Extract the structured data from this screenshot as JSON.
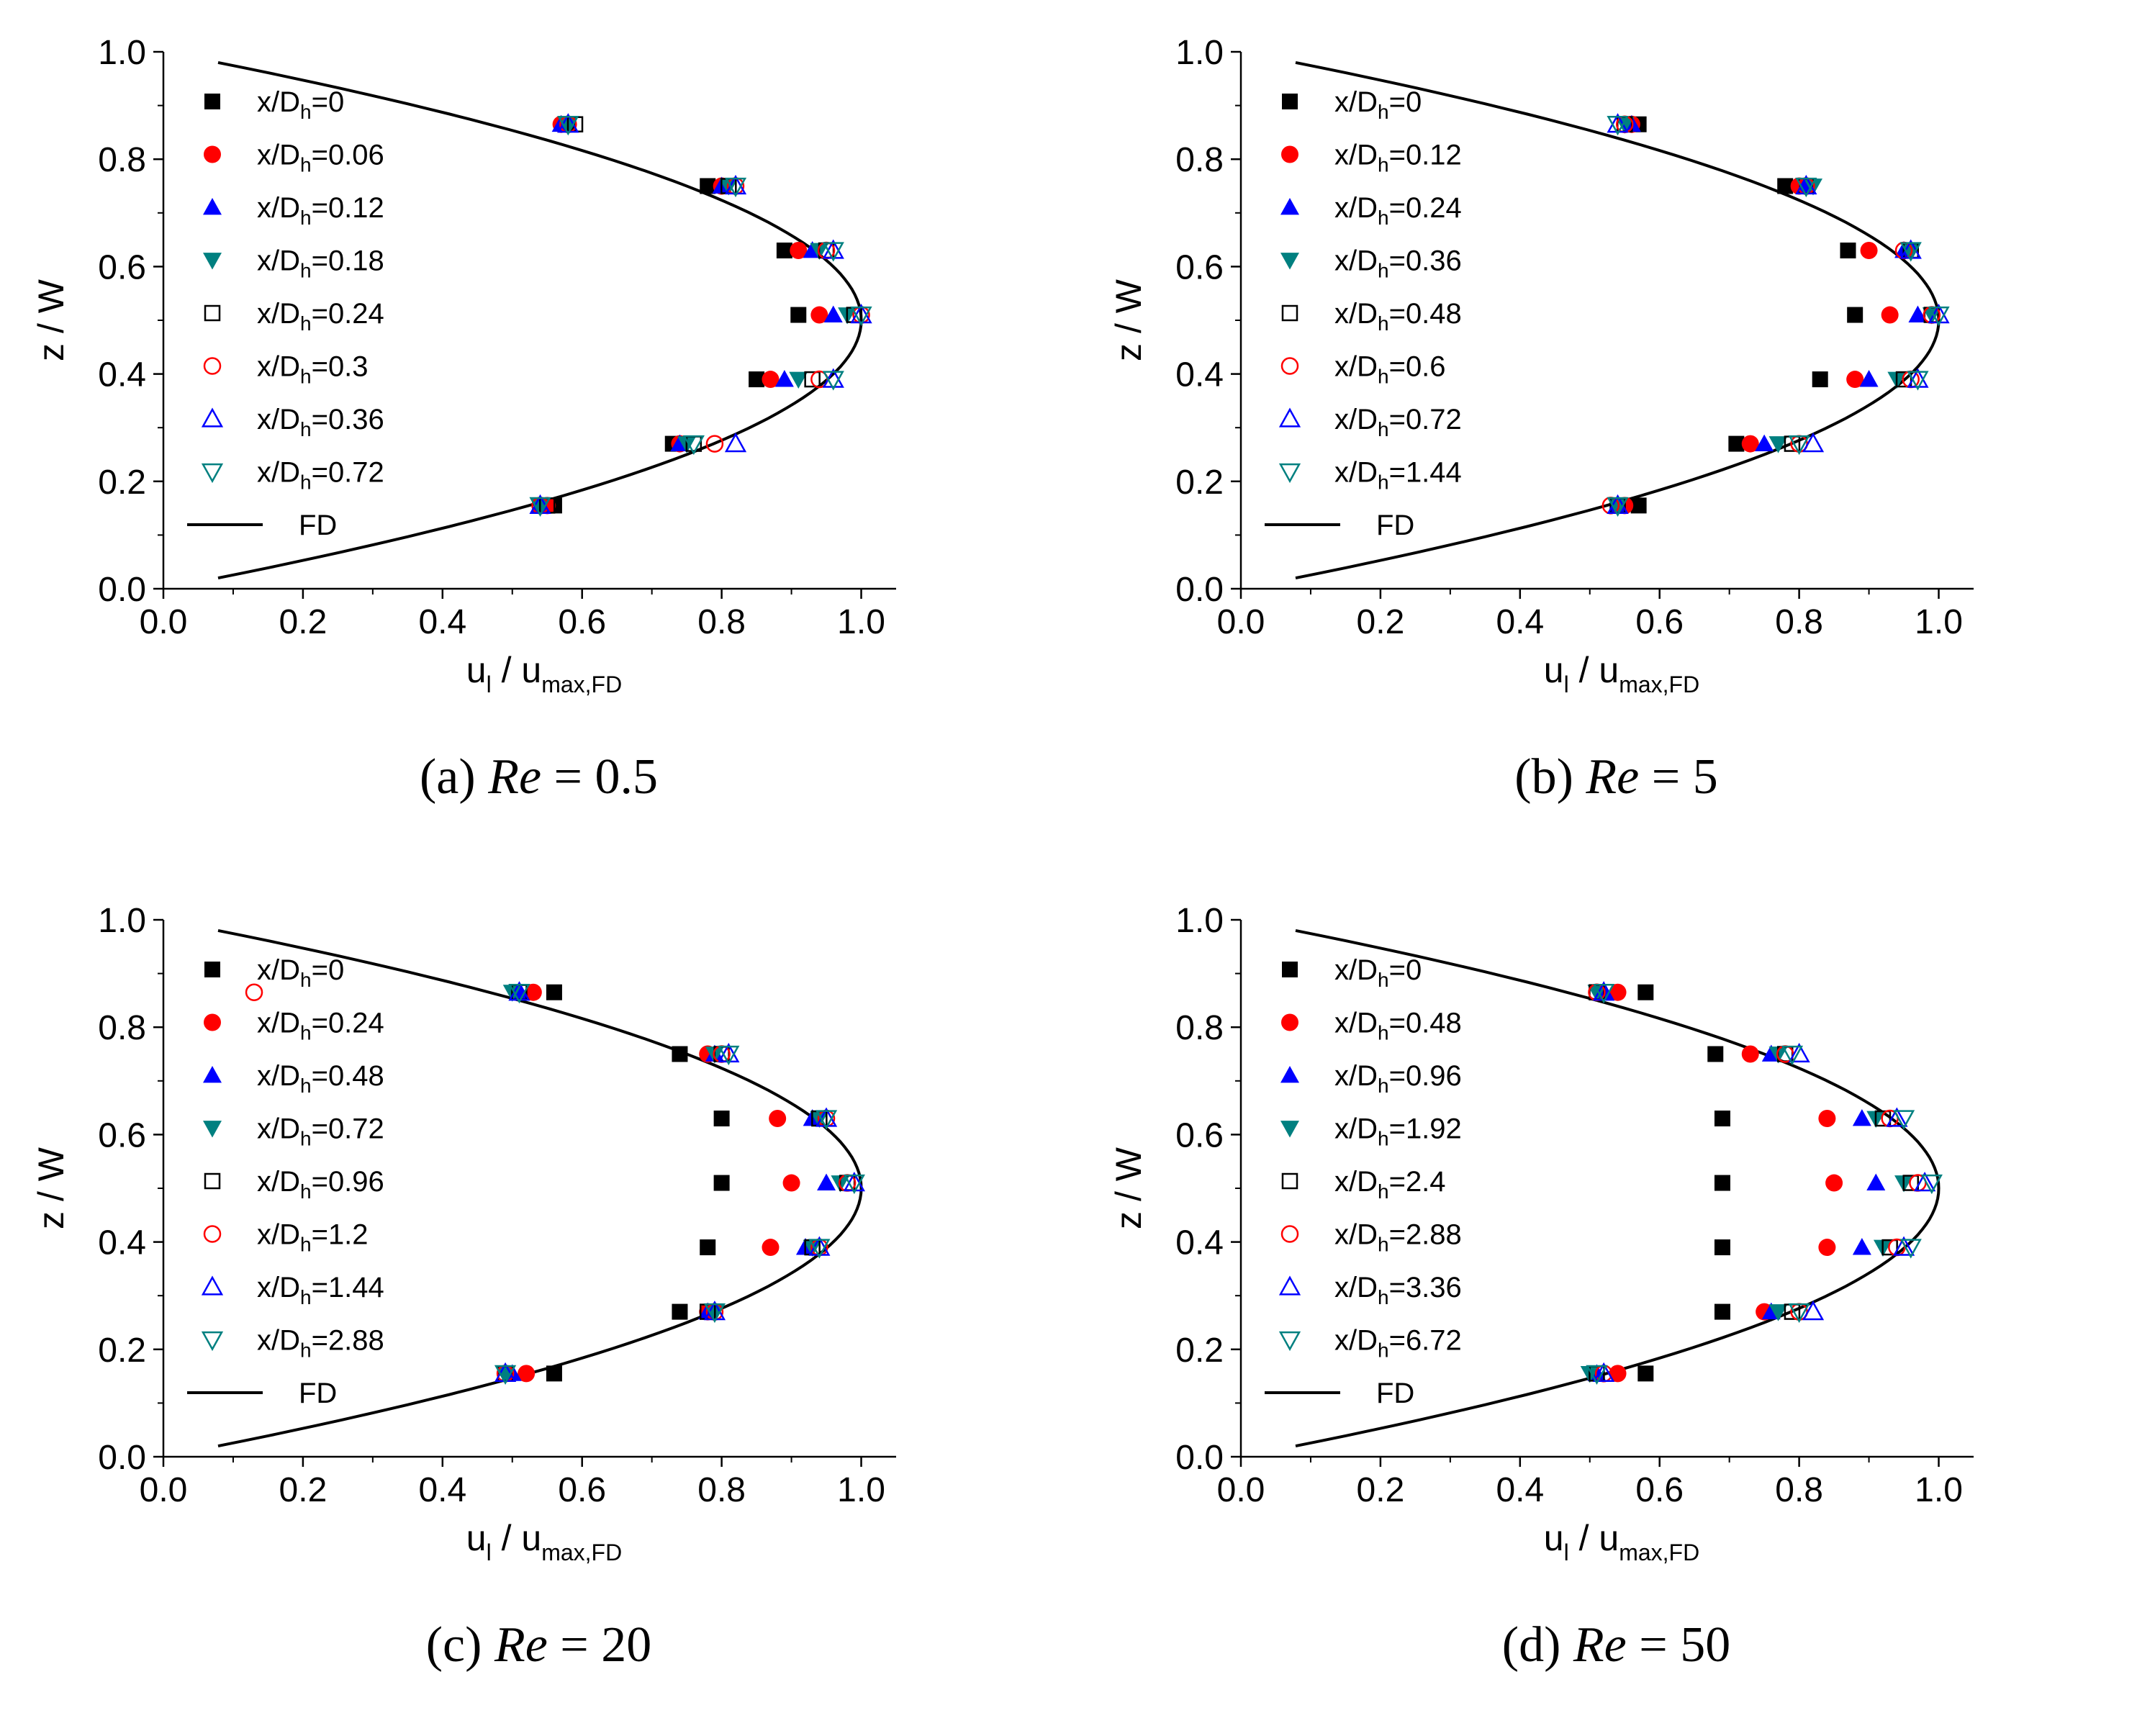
{
  "chart_data": [
    {
      "type": "scatter",
      "caption": {
        "prefix": "(a) ",
        "re_symbol": "Re",
        "rest": " = 0.5"
      },
      "xlabel": {
        "main": "u",
        "sub1": "l",
        "mid": " / u",
        "sub2": "max,FD"
      },
      "ylabel": "z / W",
      "xlim": [
        0,
        1.05
      ],
      "ylim": [
        0,
        1.0
      ],
      "xticks": [
        "0.0",
        "0.2",
        "0.4",
        "0.6",
        "0.8",
        "1.0"
      ],
      "yticks": [
        "0.0",
        "0.2",
        "0.4",
        "0.6",
        "0.8",
        "1.0"
      ],
      "legend_position": "top-left",
      "z_levels": [
        0.155,
        0.27,
        0.39,
        0.51,
        0.63,
        0.75,
        0.865
      ],
      "series": [
        {
          "name": "0",
          "marker": "square-filled",
          "color": "#000000",
          "values": [
            0.56,
            0.73,
            0.85,
            0.91,
            0.89,
            0.78,
            0.58
          ]
        },
        {
          "name": "0.06",
          "marker": "circle-filled",
          "color": "#ff0000",
          "values": [
            0.55,
            0.74,
            0.87,
            0.94,
            0.91,
            0.8,
            0.57
          ]
        },
        {
          "name": "0.12",
          "marker": "triangle-up-filled",
          "color": "#0000ff",
          "values": [
            0.54,
            0.74,
            0.89,
            0.96,
            0.93,
            0.8,
            0.57
          ]
        },
        {
          "name": "0.18",
          "marker": "triangle-down-filled",
          "color": "#008080",
          "values": [
            0.54,
            0.75,
            0.91,
            0.98,
            0.94,
            0.81,
            0.58
          ]
        },
        {
          "name": "0.24",
          "marker": "square-open",
          "color": "#000000",
          "values": [
            0.55,
            0.76,
            0.93,
            0.99,
            0.95,
            0.81,
            0.59
          ]
        },
        {
          "name": "0.3",
          "marker": "circle-open",
          "color": "#ff0000",
          "values": [
            0.54,
            0.79,
            0.94,
            1.0,
            0.95,
            0.82,
            0.58
          ]
        },
        {
          "name": "0.36",
          "marker": "triangle-up-open",
          "color": "#0000ff",
          "values": [
            0.54,
            0.82,
            0.96,
            1.0,
            0.96,
            0.82,
            0.58
          ]
        },
        {
          "name": "0.72",
          "marker": "triangle-down-open",
          "color": "#008080",
          "values": [
            0.54,
            0.76,
            0.96,
            1.0,
            0.96,
            0.82,
            0.58
          ]
        }
      ],
      "fd_curve": {
        "name": "FD"
      }
    },
    {
      "type": "scatter",
      "caption": {
        "prefix": "(b) ",
        "re_symbol": "Re",
        "rest": " = 5"
      },
      "xlabel": {
        "main": "u",
        "sub1": "l",
        "mid": " / u",
        "sub2": "max,FD"
      },
      "ylabel": "z / W",
      "xlim": [
        0,
        1.05
      ],
      "ylim": [
        0,
        1.0
      ],
      "xticks": [
        "0.0",
        "0.2",
        "0.4",
        "0.6",
        "0.8",
        "1.0"
      ],
      "yticks": [
        "0.0",
        "0.2",
        "0.4",
        "0.6",
        "0.8",
        "1.0"
      ],
      "legend_position": "top-left",
      "z_levels": [
        0.155,
        0.27,
        0.39,
        0.51,
        0.63,
        0.75,
        0.865
      ],
      "series": [
        {
          "name": "0",
          "marker": "square-filled",
          "color": "#000000",
          "values": [
            0.57,
            0.71,
            0.83,
            0.88,
            0.87,
            0.78,
            0.57
          ]
        },
        {
          "name": "0.12",
          "marker": "circle-filled",
          "color": "#ff0000",
          "values": [
            0.55,
            0.73,
            0.88,
            0.93,
            0.9,
            0.8,
            0.56
          ]
        },
        {
          "name": "0.24",
          "marker": "triangle-up-filled",
          "color": "#0000ff",
          "values": [
            0.54,
            0.75,
            0.9,
            0.97,
            0.95,
            0.81,
            0.56
          ]
        },
        {
          "name": "0.36",
          "marker": "triangle-down-filled",
          "color": "#008080",
          "values": [
            0.54,
            0.77,
            0.94,
            0.99,
            0.96,
            0.82,
            0.55
          ]
        },
        {
          "name": "0.48",
          "marker": "square-open",
          "color": "#000000",
          "values": [
            0.54,
            0.79,
            0.95,
            0.99,
            0.96,
            0.81,
            0.55
          ]
        },
        {
          "name": "0.6",
          "marker": "circle-open",
          "color": "#ff0000",
          "values": [
            0.53,
            0.8,
            0.96,
            0.99,
            0.95,
            0.81,
            0.55
          ]
        },
        {
          "name": "0.72",
          "marker": "triangle-up-open",
          "color": "#0000ff",
          "values": [
            0.54,
            0.82,
            0.97,
            1.0,
            0.96,
            0.81,
            0.54
          ]
        },
        {
          "name": "1.44",
          "marker": "triangle-down-open",
          "color": "#008080",
          "values": [
            0.54,
            0.8,
            0.97,
            1.0,
            0.96,
            0.81,
            0.54
          ]
        }
      ],
      "fd_curve": {
        "name": "FD"
      }
    },
    {
      "type": "scatter",
      "caption": {
        "prefix": "(c) ",
        "re_symbol": "Re",
        "rest": " = 20"
      },
      "xlabel": {
        "main": "u",
        "sub1": "l",
        "mid": " / u",
        "sub2": "max,FD"
      },
      "ylabel": "z / W",
      "xlim": [
        0,
        1.05
      ],
      "ylim": [
        0,
        1.0
      ],
      "xticks": [
        "0.0",
        "0.2",
        "0.4",
        "0.6",
        "0.8",
        "1.0"
      ],
      "yticks": [
        "0.0",
        "0.2",
        "0.4",
        "0.6",
        "0.8",
        "1.0"
      ],
      "legend_position": "top-left",
      "z_levels": [
        0.155,
        0.27,
        0.39,
        0.51,
        0.63,
        0.75,
        0.865
      ],
      "series": [
        {
          "name": "0",
          "marker": "square-filled",
          "color": "#000000",
          "values": [
            0.56,
            0.74,
            0.78,
            0.8,
            0.8,
            0.74,
            0.56
          ]
        },
        {
          "name": "0.24",
          "marker": "circle-filled",
          "color": "#ff0000",
          "values": [
            0.52,
            0.78,
            0.87,
            0.9,
            0.88,
            0.78,
            0.53
          ]
        },
        {
          "name": "0.48",
          "marker": "triangle-up-filled",
          "color": "#0000ff",
          "values": [
            0.5,
            0.78,
            0.92,
            0.95,
            0.93,
            0.79,
            0.51
          ]
        },
        {
          "name": "0.72",
          "marker": "triangle-down-filled",
          "color": "#008080",
          "values": [
            0.49,
            0.79,
            0.93,
            0.97,
            0.94,
            0.79,
            0.5
          ]
        },
        {
          "name": "0.96",
          "marker": "square-open",
          "color": "#000000",
          "values": [
            0.49,
            0.78,
            0.93,
            0.98,
            0.94,
            0.8,
            0.51
          ]
        },
        {
          "name": "1.2",
          "marker": "circle-open",
          "color": "#ff0000",
          "values": [
            0.49,
            0.79,
            0.94,
            0.98,
            0.95,
            0.8,
            0.13
          ]
        },
        {
          "name": "1.44",
          "marker": "triangle-up-open",
          "color": "#0000ff",
          "values": [
            0.49,
            0.79,
            0.94,
            0.99,
            0.95,
            0.81,
            0.51
          ]
        },
        {
          "name": "2.88",
          "marker": "triangle-down-open",
          "color": "#008080",
          "values": [
            0.49,
            0.79,
            0.94,
            0.99,
            0.95,
            0.81,
            0.51
          ]
        }
      ],
      "fd_curve": {
        "name": "FD"
      }
    },
    {
      "type": "scatter",
      "caption": {
        "prefix": "(d) ",
        "re_symbol": "Re",
        "rest": " = 50"
      },
      "xlabel": {
        "main": "u",
        "sub1": "l",
        "mid": " / u",
        "sub2": "max,FD"
      },
      "ylabel": "z / W",
      "xlim": [
        0,
        1.05
      ],
      "ylim": [
        0,
        1.0
      ],
      "xticks": [
        "0.0",
        "0.2",
        "0.4",
        "0.6",
        "0.8",
        "1.0"
      ],
      "yticks": [
        "0.0",
        "0.2",
        "0.4",
        "0.6",
        "0.8",
        "1.0"
      ],
      "legend_position": "top-left",
      "z_levels": [
        0.155,
        0.27,
        0.39,
        0.51,
        0.63,
        0.75,
        0.865
      ],
      "series": [
        {
          "name": "0",
          "marker": "square-filled",
          "color": "#000000",
          "values": [
            0.58,
            0.69,
            0.69,
            0.69,
            0.69,
            0.68,
            0.58
          ]
        },
        {
          "name": "0.48",
          "marker": "circle-filled",
          "color": "#ff0000",
          "values": [
            0.54,
            0.75,
            0.84,
            0.85,
            0.84,
            0.73,
            0.54
          ]
        },
        {
          "name": "0.96",
          "marker": "triangle-up-filled",
          "color": "#0000ff",
          "values": [
            0.51,
            0.76,
            0.89,
            0.91,
            0.89,
            0.76,
            0.52
          ]
        },
        {
          "name": "1.92",
          "marker": "triangle-down-filled",
          "color": "#008080",
          "values": [
            0.5,
            0.77,
            0.92,
            0.95,
            0.91,
            0.77,
            0.51
          ]
        },
        {
          "name": "2.4",
          "marker": "square-open",
          "color": "#000000",
          "values": [
            0.51,
            0.79,
            0.93,
            0.96,
            0.92,
            0.78,
            0.51
          ]
        },
        {
          "name": "2.88",
          "marker": "circle-open",
          "color": "#ff0000",
          "values": [
            0.52,
            0.8,
            0.94,
            0.97,
            0.93,
            0.78,
            0.51
          ]
        },
        {
          "name": "3.36",
          "marker": "triangle-up-open",
          "color": "#0000ff",
          "values": [
            0.52,
            0.82,
            0.95,
            0.98,
            0.94,
            0.8,
            0.52
          ]
        },
        {
          "name": "6.72",
          "marker": "triangle-down-open",
          "color": "#008080",
          "values": [
            0.51,
            0.8,
            0.96,
            0.99,
            0.95,
            0.79,
            0.52
          ]
        }
      ],
      "fd_curve": {
        "name": "FD"
      }
    }
  ],
  "legend_prefix": {
    "main": "x/D",
    "sub": "h",
    "eq": "="
  }
}
